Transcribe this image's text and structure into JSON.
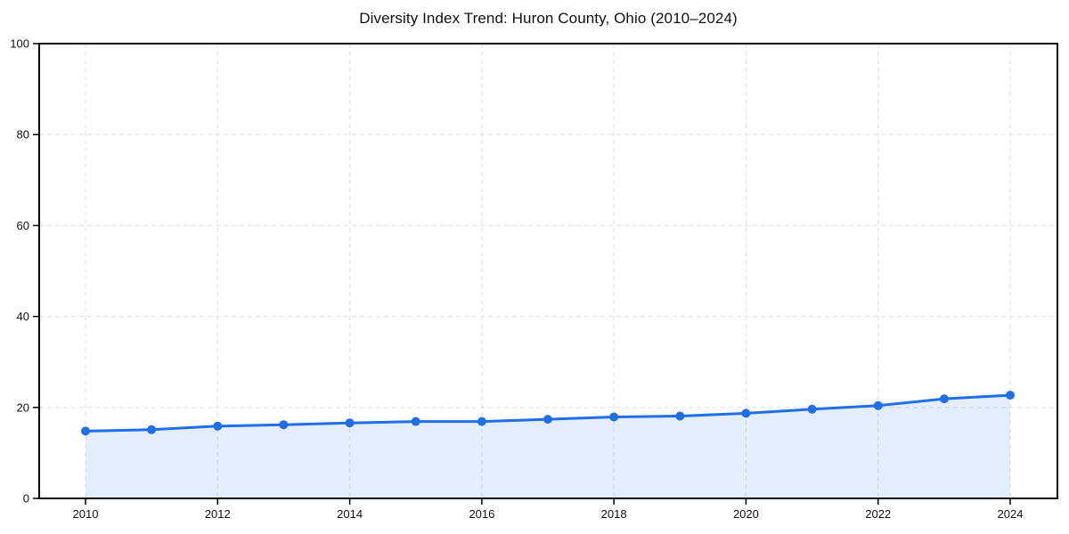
{
  "figure": {
    "background": "#ffffff"
  },
  "chart_data": {
    "type": "line",
    "title": "Diversity Index Trend: Huron County, Ohio (2010–2024)",
    "x": [
      2010,
      2011,
      2012,
      2013,
      2014,
      2015,
      2016,
      2017,
      2018,
      2019,
      2020,
      2021,
      2022,
      2023,
      2024
    ],
    "values": [
      14.8,
      15.1,
      15.9,
      16.2,
      16.6,
      16.9,
      16.9,
      17.4,
      17.9,
      18.1,
      18.7,
      19.6,
      20.4,
      21.9,
      22.7
    ],
    "xlabel": "",
    "ylabel": "",
    "ylim": [
      0,
      100
    ],
    "yticks": [
      0,
      20,
      40,
      60,
      80,
      100
    ],
    "xticks": [
      2010,
      2012,
      2014,
      2016,
      2018,
      2020,
      2022,
      2024
    ],
    "grid": "dashed",
    "legend_position": "none",
    "style": {
      "line_color": "#1e6fe8",
      "marker_color": "#1e6fe8",
      "marker": "circle",
      "fill_color": "rgba(30,111,232,0.12)",
      "grid_color": "#e3e3e3",
      "axis_color": "#000000",
      "text_color": "#111111"
    }
  }
}
